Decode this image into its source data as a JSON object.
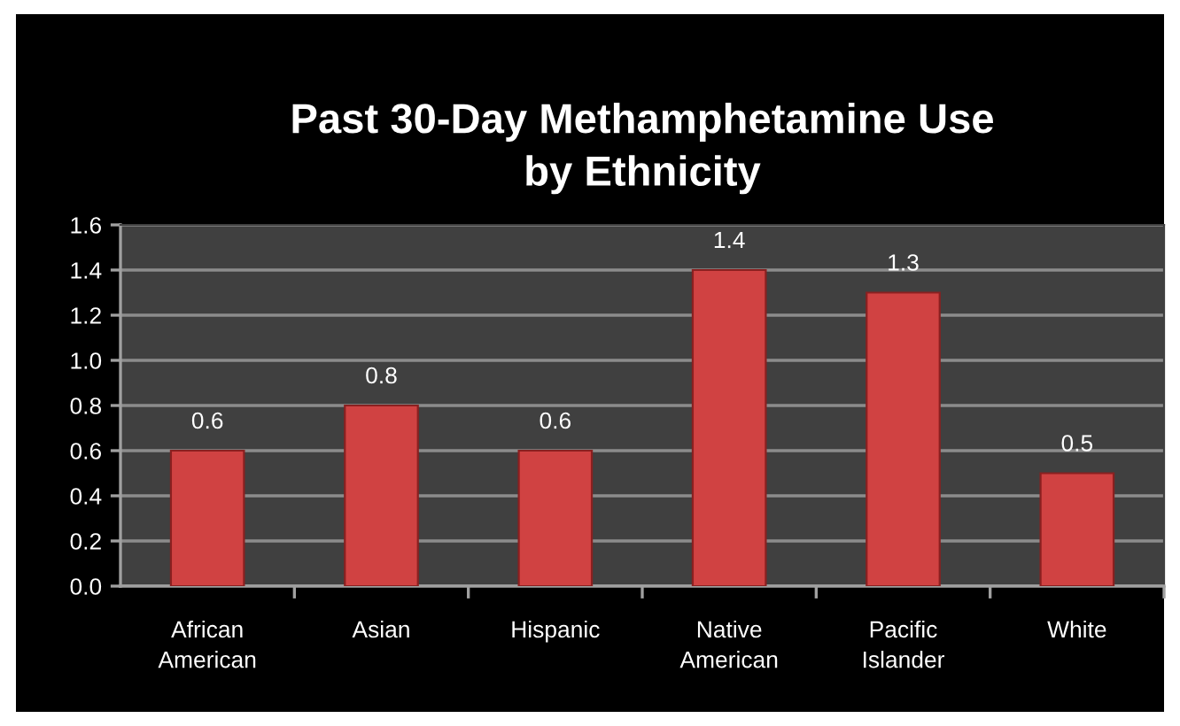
{
  "chart_data": {
    "type": "bar",
    "title": "Past 30-Day Methamphetamine Use\nby Ethnicity",
    "categories": [
      "African\nAmerican",
      "Asian",
      "Hispanic",
      "Native\nAmerican",
      "Pacific\nIslander",
      "White"
    ],
    "values": [
      0.6,
      0.8,
      0.6,
      1.4,
      1.3,
      0.5
    ],
    "color": "#d04242",
    "ylim": [
      0,
      1.6
    ],
    "yticks": [
      {
        "value": 0,
        "label": "0.0"
      },
      {
        "value": 0.2,
        "label": "0.2"
      },
      {
        "value": 0.4,
        "label": "0.4"
      },
      {
        "value": 0.6,
        "label": "0.6"
      },
      {
        "value": 0.8,
        "label": "0.8"
      },
      {
        "value": 1.0,
        "label": "1.0"
      },
      {
        "value": 1.2,
        "label": "1.2"
      },
      {
        "value": 1.4,
        "label": "1.4"
      },
      {
        "value": 1.6,
        "label": "1.6"
      }
    ],
    "grid": "y",
    "data_labels": true,
    "legend": false
  }
}
